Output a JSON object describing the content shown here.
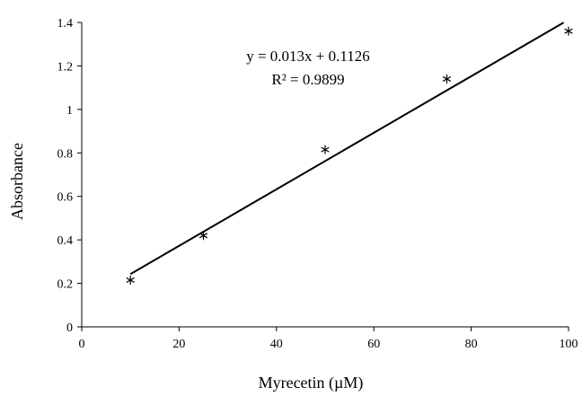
{
  "chart_data": {
    "type": "scatter",
    "xlabel": "Myrecetin (µM)",
    "ylabel": "Absorbance",
    "xlim": [
      0,
      100
    ],
    "ylim": [
      0,
      1.4
    ],
    "x_ticks": [
      "0",
      "20",
      "40",
      "60",
      "80",
      "100"
    ],
    "y_ticks": [
      "0",
      "0.2",
      "0.4",
      "0.6",
      "0.8",
      "1",
      "1.2",
      "1.4"
    ],
    "grid": false,
    "legend": "none",
    "series": [
      {
        "marker": "asterisk",
        "color": "#000000",
        "points": [
          {
            "x": 10,
            "y": 0.215
          },
          {
            "x": 25,
            "y": 0.42
          },
          {
            "x": 50,
            "y": 0.815
          },
          {
            "x": 75,
            "y": 1.14
          },
          {
            "x": 100,
            "y": 1.36
          }
        ]
      }
    ],
    "trendline": {
      "type": "linear",
      "slope": 0.013,
      "intercept": 0.1126,
      "x_range": [
        10,
        99
      ],
      "color": "#000000"
    },
    "annotations": {
      "equation": "y = 0.013x + 0.1126",
      "r_squared": "R² = 0.9899"
    }
  }
}
